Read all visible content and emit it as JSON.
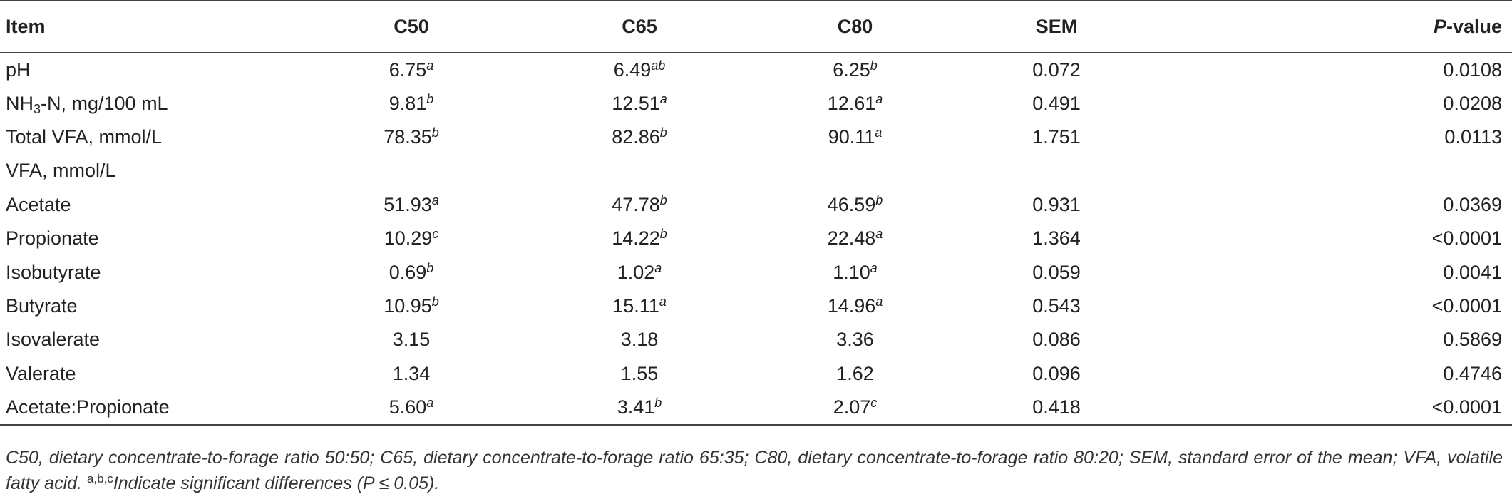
{
  "table": {
    "headers": {
      "item": "Item",
      "c50": "C50",
      "c65": "C65",
      "c80": "C80",
      "sem": "SEM",
      "p_italic": "P",
      "p_rest": "-value"
    },
    "rows": [
      {
        "item": "pH",
        "c50": "6.75",
        "c50_sup": "a",
        "c65": "6.49",
        "c65_sup": "ab",
        "c80": "6.25",
        "c80_sup": "b",
        "sem": "0.072",
        "p": "0.0108"
      },
      {
        "item_pre": "NH",
        "item_sub": "3",
        "item_post": "-N, mg/100 mL",
        "c50": "9.81",
        "c50_sup": "b",
        "c65": "12.51",
        "c65_sup": "a",
        "c80": "12.61",
        "c80_sup": "a",
        "sem": "0.491",
        "p": "0.0208"
      },
      {
        "item": "Total VFA, mmol/L",
        "c50": "78.35",
        "c50_sup": "b",
        "c65": "82.86",
        "c65_sup": "b",
        "c80": "90.11",
        "c80_sup": "a",
        "sem": "1.751",
        "p": "0.0113"
      },
      {
        "item": "VFA, mmol/L",
        "c50": "",
        "c50_sup": "",
        "c65": "",
        "c65_sup": "",
        "c80": "",
        "c80_sup": "",
        "sem": "",
        "p": ""
      },
      {
        "item": "Acetate",
        "c50": "51.93",
        "c50_sup": "a",
        "c65": "47.78",
        "c65_sup": "b",
        "c80": "46.59",
        "c80_sup": "b",
        "sem": "0.931",
        "p": "0.0369"
      },
      {
        "item": "Propionate",
        "c50": "10.29",
        "c50_sup": "c",
        "c65": "14.22",
        "c65_sup": "b",
        "c80": "22.48",
        "c80_sup": "a",
        "sem": "1.364",
        "p": "<0.0001"
      },
      {
        "item": "Isobutyrate",
        "c50": "0.69",
        "c50_sup": "b",
        "c65": "1.02",
        "c65_sup": "a",
        "c80": "1.10",
        "c80_sup": "a",
        "sem": "0.059",
        "p": "0.0041"
      },
      {
        "item": "Butyrate",
        "c50": "10.95",
        "c50_sup": "b",
        "c65": "15.11",
        "c65_sup": "a",
        "c80": "14.96",
        "c80_sup": "a",
        "sem": "0.543",
        "p": "<0.0001"
      },
      {
        "item": "Isovalerate",
        "c50": "3.15",
        "c50_sup": "",
        "c65": "3.18",
        "c65_sup": "",
        "c80": "3.36",
        "c80_sup": "",
        "sem": "0.086",
        "p": "0.5869"
      },
      {
        "item": "Valerate",
        "c50": "1.34",
        "c50_sup": "",
        "c65": "1.55",
        "c65_sup": "",
        "c80": "1.62",
        "c80_sup": "",
        "sem": "0.096",
        "p": "0.4746"
      },
      {
        "item": "Acetate:Propionate",
        "c50": "5.60",
        "c50_sup": "a",
        "c65": "3.41",
        "c65_sup": "b",
        "c80": "2.07",
        "c80_sup": "c",
        "sem": "0.418",
        "p": "<0.0001"
      }
    ]
  },
  "footnote": {
    "text": "C50, dietary concentrate-to-forage ratio 50:50; C65, dietary concentrate-to-forage ratio 65:35; C80, dietary concentrate-to-forage ratio 80:20; SEM, standard error of the mean; VFA, volatile fatty acid. ",
    "sup": "a,b,c",
    "tail": "Indicate significant differences (P ≤ 0.05)."
  }
}
